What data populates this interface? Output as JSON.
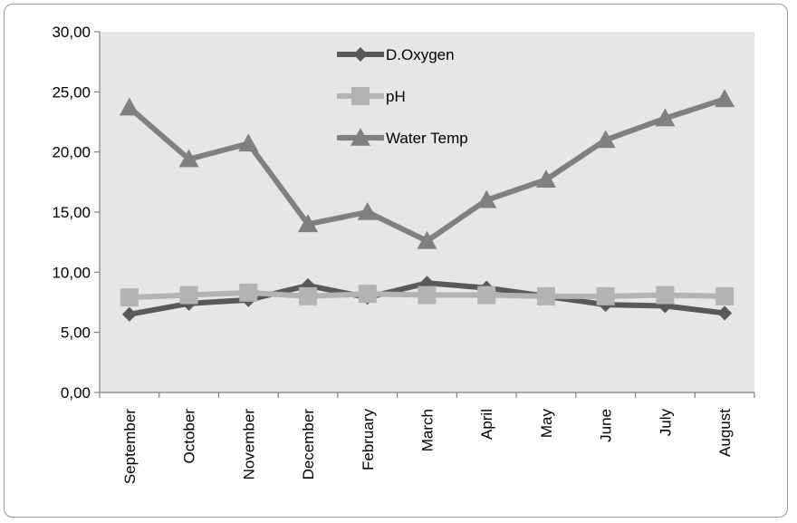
{
  "chart_data": {
    "type": "line",
    "categories": [
      "September",
      "October",
      "November",
      "December",
      "February",
      "March",
      "April",
      "May",
      "June",
      "July",
      "August"
    ],
    "series": [
      {
        "name": "D.Oxygen",
        "values": [
          6.5,
          7.4,
          7.7,
          8.9,
          7.9,
          9.1,
          8.7,
          8.0,
          7.3,
          7.2,
          6.6
        ],
        "color": "#595959",
        "marker": "diamond"
      },
      {
        "name": "pH",
        "values": [
          7.9,
          8.1,
          8.3,
          8.0,
          8.2,
          8.1,
          8.1,
          8.0,
          8.0,
          8.1,
          8.0
        ],
        "color": "#b3b3b3",
        "marker": "square"
      },
      {
        "name": "Water Temp",
        "values": [
          23.7,
          19.4,
          20.7,
          14.0,
          15.0,
          12.6,
          16.0,
          17.7,
          21.0,
          22.8,
          24.4
        ],
        "color": "#808080",
        "marker": "triangle"
      }
    ],
    "ylim": [
      0,
      30
    ],
    "yticks": [
      "0,00",
      "5,00",
      "10,00",
      "15,00",
      "20,00",
      "25,00",
      "30,00"
    ],
    "ytick_values": [
      0,
      5,
      10,
      15,
      20,
      25,
      30
    ],
    "grid": false,
    "legend": "top-center",
    "plot_background": "#e6e6e6"
  }
}
